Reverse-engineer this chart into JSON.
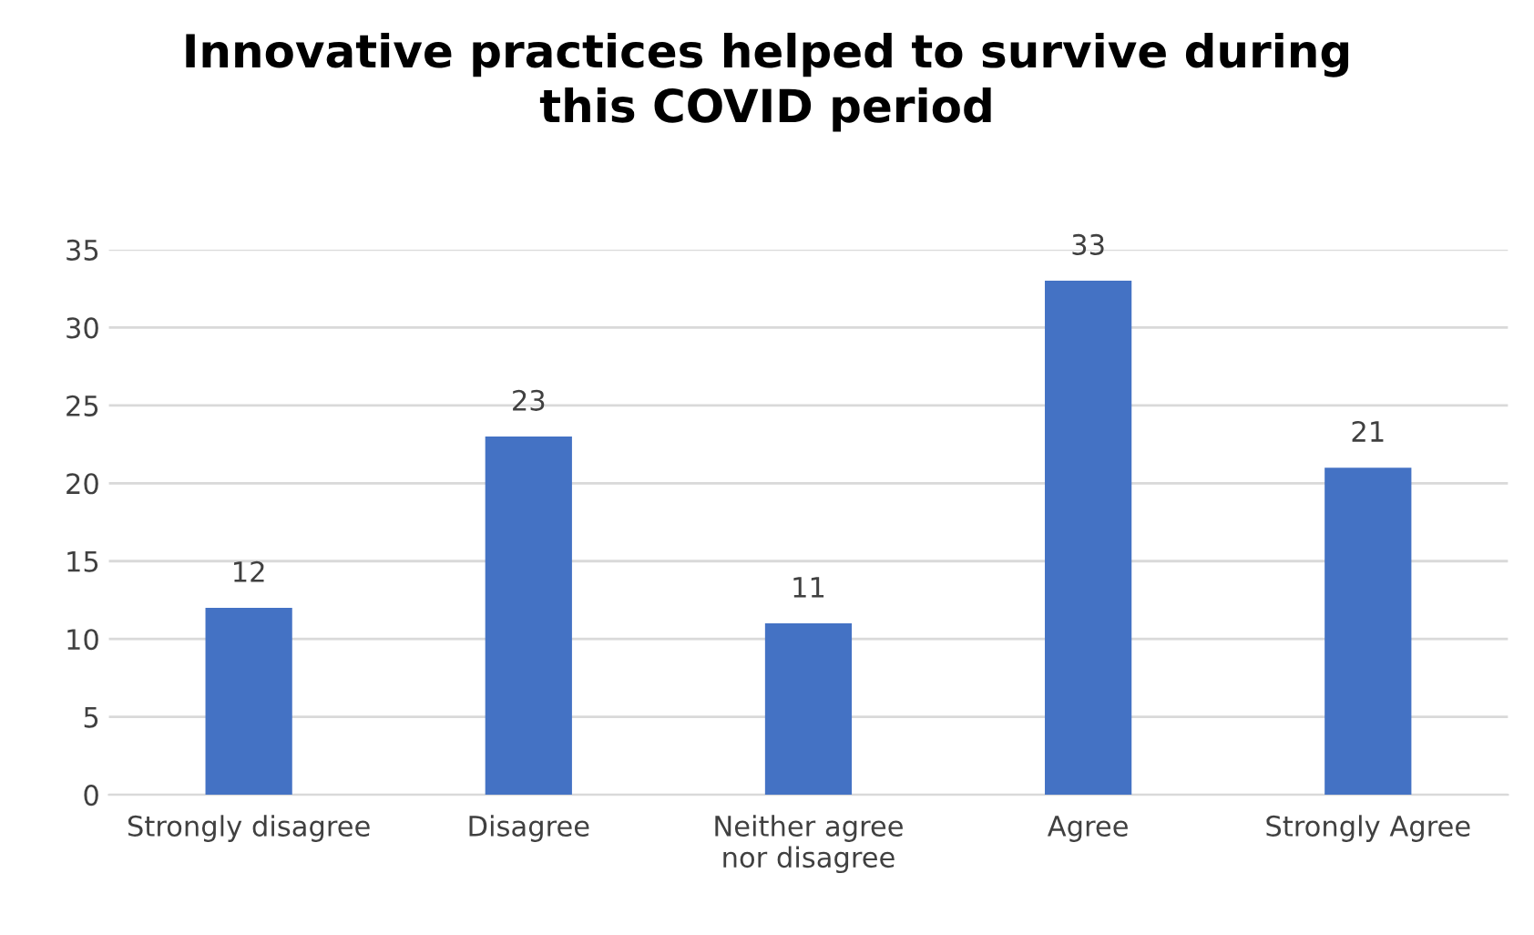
{
  "chart_data": {
    "type": "bar",
    "title": "Innovative practices helped to survive during\nthis COVID period",
    "categories": [
      "Strongly disagree",
      "Disagree",
      "Neither agree\nnor disagree",
      "Agree",
      "Strongly Agree"
    ],
    "values": [
      12,
      23,
      11,
      33,
      21
    ],
    "color": "#4472c4",
    "ylim": [
      0,
      35
    ],
    "yticks": [
      0,
      5,
      10,
      15,
      20,
      25,
      30,
      35
    ],
    "grid": "y",
    "data_labels": true,
    "legend": false
  }
}
